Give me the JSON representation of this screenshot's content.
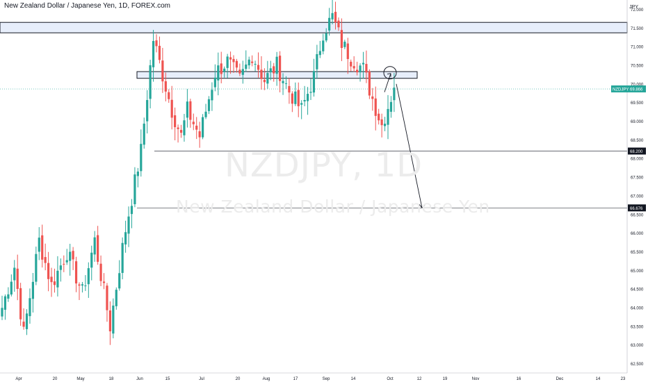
{
  "chart_title": "New Zealand Dollar / Japanese Yen, 1D, FOREX.com",
  "watermark": {
    "symbol": "NZDJPY, 1D",
    "name": "New Zealand Dollar / Japanese Yen"
  },
  "currency_label": "JPY",
  "price_tag": {
    "label": "NZDJPY",
    "value": "69.866"
  },
  "level_tags": [
    "68.200",
    "66.676"
  ],
  "colors": {
    "up": "#26a69a",
    "down": "#ef5350",
    "zone_fill": "#e7eefb",
    "zone_stroke": "#131722",
    "grid_text": "#131722",
    "price_line": "#26a69a"
  },
  "chart_data": {
    "type": "candlestick",
    "title": "New Zealand Dollar / Japanese Yen, 1D, FOREX.com",
    "ylim": [
      62.25,
      72.25
    ],
    "y_ticks": [
      "62.500",
      "63.000",
      "63.500",
      "64.000",
      "64.500",
      "65.000",
      "65.500",
      "66.000",
      "66.500",
      "67.000",
      "67.500",
      "68.000",
      "68.500",
      "69.000",
      "69.500",
      "70.000",
      "70.500",
      "71.000",
      "71.500",
      "72.000",
      "72.500"
    ],
    "x_ticks": [
      "Apr",
      "20",
      "May",
      "18",
      "Jun",
      "15",
      "Jul",
      "20",
      "Aug",
      "17",
      "Sep",
      "14",
      "Oct",
      "12",
      "19",
      "Nov",
      "16",
      "Dec",
      "14",
      "23"
    ],
    "anchors": [
      {
        "i": 0,
        "c": 64.0
      },
      {
        "i": 4,
        "c": 65.1
      },
      {
        "i": 7,
        "c": 63.3
      },
      {
        "i": 12,
        "c": 65.8
      },
      {
        "i": 16,
        "c": 64.6
      },
      {
        "i": 21,
        "c": 65.5
      },
      {
        "i": 26,
        "c": 64.4
      },
      {
        "i": 30,
        "c": 65.8
      },
      {
        "i": 35,
        "c": 63.5
      },
      {
        "i": 38,
        "c": 65.1
      },
      {
        "i": 40,
        "c": 66.1
      },
      {
        "i": 45,
        "c": 68.2
      },
      {
        "i": 49,
        "c": 71.2
      },
      {
        "i": 55,
        "c": 69.3
      },
      {
        "i": 58,
        "c": 68.6
      },
      {
        "i": 60,
        "c": 69.3
      },
      {
        "i": 64,
        "c": 68.6
      },
      {
        "i": 69,
        "c": 70.3
      },
      {
        "i": 73,
        "c": 70.6
      },
      {
        "i": 77,
        "c": 70.1
      },
      {
        "i": 81,
        "c": 70.8
      },
      {
        "i": 85,
        "c": 70.1
      },
      {
        "i": 89,
        "c": 70.5
      },
      {
        "i": 93,
        "c": 69.8
      },
      {
        "i": 97,
        "c": 69.3
      },
      {
        "i": 101,
        "c": 70.2
      },
      {
        "i": 104,
        "c": 71.4
      },
      {
        "i": 107,
        "c": 71.8
      },
      {
        "i": 110,
        "c": 71.1
      },
      {
        "i": 113,
        "c": 70.7
      },
      {
        "i": 117,
        "c": 70.4
      },
      {
        "i": 120,
        "c": 69.6
      },
      {
        "i": 123,
        "c": 68.9
      },
      {
        "i": 127,
        "c": 69.9
      }
    ],
    "levels": [
      {
        "name": "resistance-zone",
        "from": 71.37,
        "to": 71.65
      },
      {
        "name": "retest-zone",
        "from": 70.15,
        "to": 70.33
      },
      {
        "name": "support-68.2",
        "value": 68.2
      },
      {
        "name": "target-66.676",
        "value": 66.676
      },
      {
        "name": "current-price",
        "value": 69.866
      }
    ],
    "projection": {
      "from": {
        "date": "Oct",
        "value": 70.2
      },
      "to": {
        "date": "12",
        "value": 66.676
      }
    }
  }
}
